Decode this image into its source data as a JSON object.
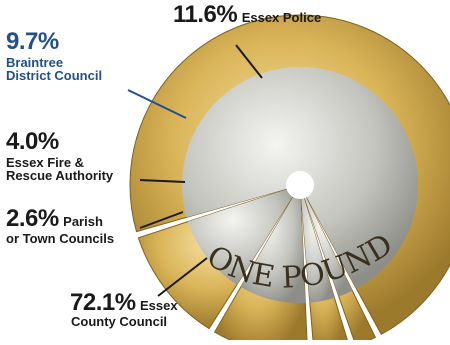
{
  "chart_data": {
    "type": "pie",
    "categories": [
      "Essex County Council",
      "Parish or Town Councils",
      "Essex Fire & Rescue Authority",
      "Braintree District Council",
      "Essex Police"
    ],
    "values": [
      72.1,
      2.6,
      4.0,
      9.7,
      11.6
    ],
    "labels": [
      {
        "pct": "72.1%",
        "name_a": "Essex",
        "name_b": "County Council",
        "color": "#1a1a1a"
      },
      {
        "pct": "2.6%",
        "name_a": "Parish",
        "name_b": "or Town Councils",
        "color": "#1a1a1a"
      },
      {
        "pct": "4.0%",
        "name_a": "Essex Fire &",
        "name_b": "Rescue Authority",
        "color": "#1a1a1a"
      },
      {
        "pct": "9.7%",
        "name_a": "Braintree",
        "name_b": "District Council",
        "color": "#22508f"
      },
      {
        "pct": "11.6%",
        "name_a": "Essex Police",
        "name_b": "",
        "color": "#1a1a1a"
      }
    ],
    "coin_text": "ONE POUND",
    "colors": {
      "outer_ring": "#d8b45c",
      "inner_disc": "#c9c9c4",
      "highlight": "#22508f",
      "leader": "#1a1a1a"
    }
  }
}
